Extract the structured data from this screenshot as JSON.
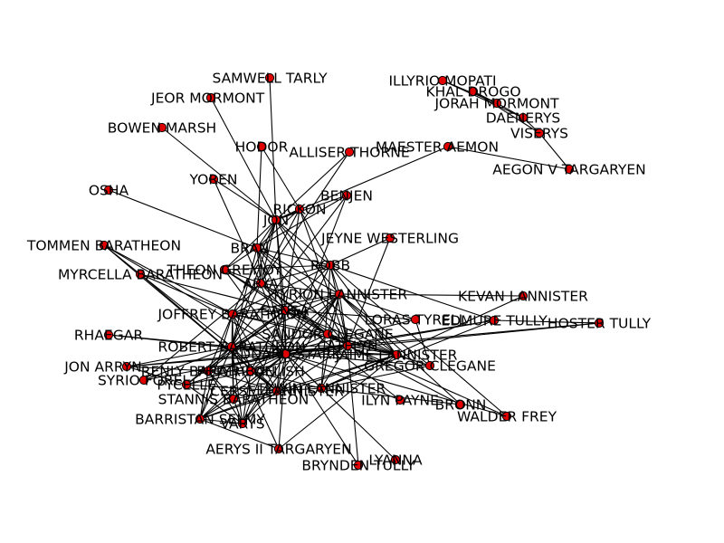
{
  "graph": {
    "colors": {
      "node_fill": "#e00000",
      "node_stroke": "#000000",
      "edge": "#000000",
      "background": "#ffffff"
    },
    "nodes": [
      {
        "id": "samwell",
        "label": "SAMWELL TARLY"
      },
      {
        "id": "illyrio",
        "label": "ILLYRIO MOPATI"
      },
      {
        "id": "drogo",
        "label": "KHAL DROGO"
      },
      {
        "id": "jorah",
        "label": "JORAH MORMONT"
      },
      {
        "id": "daenerys",
        "label": "DAENERYS"
      },
      {
        "id": "viserys",
        "label": "VISERYS"
      },
      {
        "id": "jeor",
        "label": "JEOR MORMONT"
      },
      {
        "id": "bowen",
        "label": "BOWEN MARSH"
      },
      {
        "id": "hodor",
        "label": "HODOR"
      },
      {
        "id": "alliser",
        "label": "ALLISER THORNE"
      },
      {
        "id": "aemon",
        "label": "MAESTER AEMON"
      },
      {
        "id": "aegon",
        "label": "AEGON V TARGARYEN"
      },
      {
        "id": "yoren",
        "label": "YOREN"
      },
      {
        "id": "osha",
        "label": "OSHA"
      },
      {
        "id": "benjen",
        "label": "BENJEN"
      },
      {
        "id": "rickon",
        "label": "RICKON"
      },
      {
        "id": "jon",
        "label": "JON"
      },
      {
        "id": "jeyne",
        "label": "JEYNE WESTERLING"
      },
      {
        "id": "tommen",
        "label": "TOMMEN BARATHEON"
      },
      {
        "id": "bran",
        "label": "BRAN"
      },
      {
        "id": "robb",
        "label": "ROBB"
      },
      {
        "id": "theon",
        "label": "THEON GREYJOY"
      },
      {
        "id": "myrcella",
        "label": "MYRCELLA BARATHEON"
      },
      {
        "id": "arya",
        "label": "ARYA"
      },
      {
        "id": "tyrion",
        "label": "TYRION LANNISTER"
      },
      {
        "id": "kevan",
        "label": "KEVAN LANNISTER"
      },
      {
        "id": "joffrey",
        "label": "JOFFREY BARATHEON"
      },
      {
        "id": "sansa",
        "label": "SANSA"
      },
      {
        "id": "loras",
        "label": "LORAS TYRELL"
      },
      {
        "id": "edmure",
        "label": "EDMURE TULLY"
      },
      {
        "id": "hoster",
        "label": "HOSTER TULLY"
      },
      {
        "id": "sandor",
        "label": "SANDOR CLEGANE"
      },
      {
        "id": "rhaegar",
        "label": "RHAEGAR"
      },
      {
        "id": "robert",
        "label": "ROBERT BARATHEON"
      },
      {
        "id": "ned",
        "label": "EDDARD STARK"
      },
      {
        "id": "catelyn",
        "label": "CATELYN"
      },
      {
        "id": "jaime",
        "label": "JAIME LANNISTER"
      },
      {
        "id": "gregor",
        "label": "GREGOR CLEGANE"
      },
      {
        "id": "jonarryn",
        "label": "JON ARRYN"
      },
      {
        "id": "renly",
        "label": "RENLY BARATHEON"
      },
      {
        "id": "littlefinger",
        "label": "PETYR BAELISH"
      },
      {
        "id": "syrio",
        "label": "SYRIO FOREL"
      },
      {
        "id": "pycelle",
        "label": "PYCELLE"
      },
      {
        "id": "cersei",
        "label": "CERSEI LANNISTER"
      },
      {
        "id": "tywin",
        "label": "TYWIN LANNISTER"
      },
      {
        "id": "ilyn",
        "label": "ILYN PAYNE"
      },
      {
        "id": "bronn",
        "label": "BRONN"
      },
      {
        "id": "walder",
        "label": "WALDER FREY"
      },
      {
        "id": "stannis",
        "label": "STANNIS BARATHEON"
      },
      {
        "id": "barristan",
        "label": "BARRISTAN SELMY"
      },
      {
        "id": "varys",
        "label": "VARYS"
      },
      {
        "id": "aerys",
        "label": "AERYS II TARGARYEN"
      },
      {
        "id": "lyanna",
        "label": "LYANNA"
      },
      {
        "id": "brynden",
        "label": "BRYNDEN TULLY"
      }
    ],
    "edges": [
      [
        "illyrio",
        "jorah"
      ],
      [
        "illyrio",
        "daenerys"
      ],
      [
        "drogo",
        "jorah"
      ],
      [
        "drogo",
        "viserys"
      ],
      [
        "jorah",
        "daenerys"
      ],
      [
        "daenerys",
        "viserys"
      ],
      [
        "viserys",
        "aegon"
      ],
      [
        "aemon",
        "aegon"
      ],
      [
        "aemon",
        "jon"
      ],
      [
        "alliser",
        "jon"
      ],
      [
        "samwell",
        "jon"
      ],
      [
        "jeor",
        "jon"
      ],
      [
        "bowen",
        "jon"
      ],
      [
        "hodor",
        "bran"
      ],
      [
        "hodor",
        "rickon"
      ],
      [
        "yoren",
        "arya"
      ],
      [
        "yoren",
        "jon"
      ],
      [
        "osha",
        "bran"
      ],
      [
        "benjen",
        "jon"
      ],
      [
        "benjen",
        "bran"
      ],
      [
        "benjen",
        "ned"
      ],
      [
        "benjen",
        "robert"
      ],
      [
        "alliser",
        "arya"
      ],
      [
        "rickon",
        "bran"
      ],
      [
        "rickon",
        "robb"
      ],
      [
        "rickon",
        "jon"
      ],
      [
        "rickon",
        "catelyn"
      ],
      [
        "rickon",
        "sansa"
      ],
      [
        "rickon",
        "arya"
      ],
      [
        "jon",
        "bran"
      ],
      [
        "jon",
        "robb"
      ],
      [
        "jon",
        "theon"
      ],
      [
        "jon",
        "arya"
      ],
      [
        "jon",
        "ned"
      ],
      [
        "jon",
        "sansa"
      ],
      [
        "jon",
        "catelyn"
      ],
      [
        "jon",
        "tyrion"
      ],
      [
        "jon",
        "joffrey"
      ],
      [
        "jon",
        "robert"
      ],
      [
        "jeyne",
        "robb"
      ],
      [
        "jeyne",
        "catelyn"
      ],
      [
        "tommen",
        "joffrey"
      ],
      [
        "tommen",
        "cersei"
      ],
      [
        "tommen",
        "myrcella"
      ],
      [
        "tommen",
        "ned"
      ],
      [
        "bran",
        "robb"
      ],
      [
        "bran",
        "theon"
      ],
      [
        "bran",
        "arya"
      ],
      [
        "bran",
        "sansa"
      ],
      [
        "bran",
        "ned"
      ],
      [
        "bran",
        "catelyn"
      ],
      [
        "bran",
        "tyrion"
      ],
      [
        "bran",
        "jaime"
      ],
      [
        "bran",
        "robert"
      ],
      [
        "robb",
        "theon"
      ],
      [
        "robb",
        "arya"
      ],
      [
        "robb",
        "sansa"
      ],
      [
        "robb",
        "ned"
      ],
      [
        "robb",
        "catelyn"
      ],
      [
        "robb",
        "tyrion"
      ],
      [
        "robb",
        "jaime"
      ],
      [
        "robb",
        "edmure"
      ],
      [
        "robb",
        "tywin"
      ],
      [
        "robb",
        "walder"
      ],
      [
        "robb",
        "joffrey"
      ],
      [
        "theon",
        "catelyn"
      ],
      [
        "theon",
        "sansa"
      ],
      [
        "theon",
        "arya"
      ],
      [
        "theon",
        "ned"
      ],
      [
        "myrcella",
        "joffrey"
      ],
      [
        "myrcella",
        "cersei"
      ],
      [
        "myrcella",
        "sansa"
      ],
      [
        "myrcella",
        "robert"
      ],
      [
        "arya",
        "sansa"
      ],
      [
        "arya",
        "ned"
      ],
      [
        "arya",
        "catelyn"
      ],
      [
        "arya",
        "joffrey"
      ],
      [
        "arya",
        "sandor"
      ],
      [
        "arya",
        "syrio"
      ],
      [
        "arya",
        "robert"
      ],
      [
        "arya",
        "tyrion"
      ],
      [
        "arya",
        "jaime"
      ],
      [
        "tyrion",
        "kevan"
      ],
      [
        "tyrion",
        "joffrey"
      ],
      [
        "tyrion",
        "sansa"
      ],
      [
        "tyrion",
        "ned"
      ],
      [
        "tyrion",
        "catelyn"
      ],
      [
        "tyrion",
        "jaime"
      ],
      [
        "tyrion",
        "cersei"
      ],
      [
        "tyrion",
        "tywin"
      ],
      [
        "tyrion",
        "bronn"
      ],
      [
        "tyrion",
        "sandor"
      ],
      [
        "tyrion",
        "robert"
      ],
      [
        "tyrion",
        "loras"
      ],
      [
        "tyrion",
        "littlefinger"
      ],
      [
        "tyrion",
        "varys"
      ],
      [
        "tyrion",
        "gregor"
      ],
      [
        "joffrey",
        "sansa"
      ],
      [
        "joffrey",
        "ned"
      ],
      [
        "joffrey",
        "cersei"
      ],
      [
        "joffrey",
        "robert"
      ],
      [
        "joffrey",
        "sandor"
      ],
      [
        "joffrey",
        "littlefinger"
      ],
      [
        "joffrey",
        "stannis"
      ],
      [
        "joffrey",
        "jaime"
      ],
      [
        "joffrey",
        "renly"
      ],
      [
        "joffrey",
        "barristan"
      ],
      [
        "sansa",
        "ned"
      ],
      [
        "sansa",
        "catelyn"
      ],
      [
        "sansa",
        "sandor"
      ],
      [
        "sansa",
        "cersei"
      ],
      [
        "sansa",
        "littlefinger"
      ],
      [
        "sansa",
        "robert"
      ],
      [
        "sansa",
        "loras"
      ],
      [
        "sansa",
        "jaime"
      ],
      [
        "sansa",
        "pycelle"
      ],
      [
        "sansa",
        "varys"
      ],
      [
        "sansa",
        "renly"
      ],
      [
        "sansa",
        "ilyn"
      ],
      [
        "loras",
        "renly"
      ],
      [
        "loras",
        "gregor"
      ],
      [
        "edmure",
        "catelyn"
      ],
      [
        "edmure",
        "hoster"
      ],
      [
        "edmure",
        "ned"
      ],
      [
        "edmure",
        "tywin"
      ],
      [
        "hoster",
        "catelyn"
      ],
      [
        "hoster",
        "ned"
      ],
      [
        "sandor",
        "ned"
      ],
      [
        "sandor",
        "gregor"
      ],
      [
        "sandor",
        "robert"
      ],
      [
        "sandor",
        "jaime"
      ],
      [
        "sandor",
        "cersei"
      ],
      [
        "rhaegar",
        "robert"
      ],
      [
        "rhaegar",
        "ned"
      ],
      [
        "robert",
        "ned"
      ],
      [
        "robert",
        "cersei"
      ],
      [
        "robert",
        "jaime"
      ],
      [
        "robert",
        "renly"
      ],
      [
        "robert",
        "littlefinger"
      ],
      [
        "robert",
        "jonarryn"
      ],
      [
        "robert",
        "pycelle"
      ],
      [
        "robert",
        "stannis"
      ],
      [
        "robert",
        "barristan"
      ],
      [
        "robert",
        "varys"
      ],
      [
        "robert",
        "aerys"
      ],
      [
        "robert",
        "syrio"
      ],
      [
        "robert",
        "catelyn"
      ],
      [
        "ned",
        "catelyn"
      ],
      [
        "ned",
        "cersei"
      ],
      [
        "ned",
        "jaime"
      ],
      [
        "ned",
        "tywin"
      ],
      [
        "ned",
        "littlefinger"
      ],
      [
        "ned",
        "renly"
      ],
      [
        "ned",
        "varys"
      ],
      [
        "ned",
        "pycelle"
      ],
      [
        "ned",
        "jonarryn"
      ],
      [
        "ned",
        "stannis"
      ],
      [
        "ned",
        "barristan"
      ],
      [
        "ned",
        "syrio"
      ],
      [
        "ned",
        "ilyn"
      ],
      [
        "ned",
        "gregor"
      ],
      [
        "ned",
        "aerys"
      ],
      [
        "ned",
        "lyanna"
      ],
      [
        "ned",
        "brynden"
      ],
      [
        "ned",
        "walder"
      ],
      [
        "catelyn",
        "jaime"
      ],
      [
        "catelyn",
        "littlefinger"
      ],
      [
        "catelyn",
        "brynden"
      ],
      [
        "catelyn",
        "walder"
      ],
      [
        "catelyn",
        "tywin"
      ],
      [
        "catelyn",
        "cersei"
      ],
      [
        "catelyn",
        "bronn"
      ],
      [
        "catelyn",
        "jonarryn"
      ],
      [
        "jaime",
        "cersei"
      ],
      [
        "jaime",
        "tywin"
      ],
      [
        "jaime",
        "gregor"
      ],
      [
        "jaime",
        "barristan"
      ],
      [
        "jaime",
        "aerys"
      ],
      [
        "tywin",
        "cersei"
      ],
      [
        "tywin",
        "gregor"
      ],
      [
        "tywin",
        "kevan"
      ],
      [
        "tywin",
        "bronn"
      ],
      [
        "tywin",
        "littlefinger"
      ],
      [
        "cersei",
        "littlefinger"
      ],
      [
        "cersei",
        "renly"
      ],
      [
        "cersei",
        "varys"
      ],
      [
        "cersei",
        "pycelle"
      ],
      [
        "cersei",
        "barristan"
      ],
      [
        "cersei",
        "stannis"
      ],
      [
        "littlefinger",
        "renly"
      ],
      [
        "littlefinger",
        "varys"
      ],
      [
        "littlefinger",
        "pycelle"
      ],
      [
        "littlefinger",
        "barristan"
      ],
      [
        "renly",
        "stannis"
      ],
      [
        "renly",
        "varys"
      ],
      [
        "renly",
        "barristan"
      ],
      [
        "pycelle",
        "varys"
      ],
      [
        "pycelle",
        "jonarryn"
      ],
      [
        "stannis",
        "barristan"
      ],
      [
        "stannis",
        "varys"
      ],
      [
        "barristan",
        "varys"
      ],
      [
        "jonarryn",
        "renly"
      ],
      [
        "aerys",
        "barristan"
      ]
    ]
  }
}
